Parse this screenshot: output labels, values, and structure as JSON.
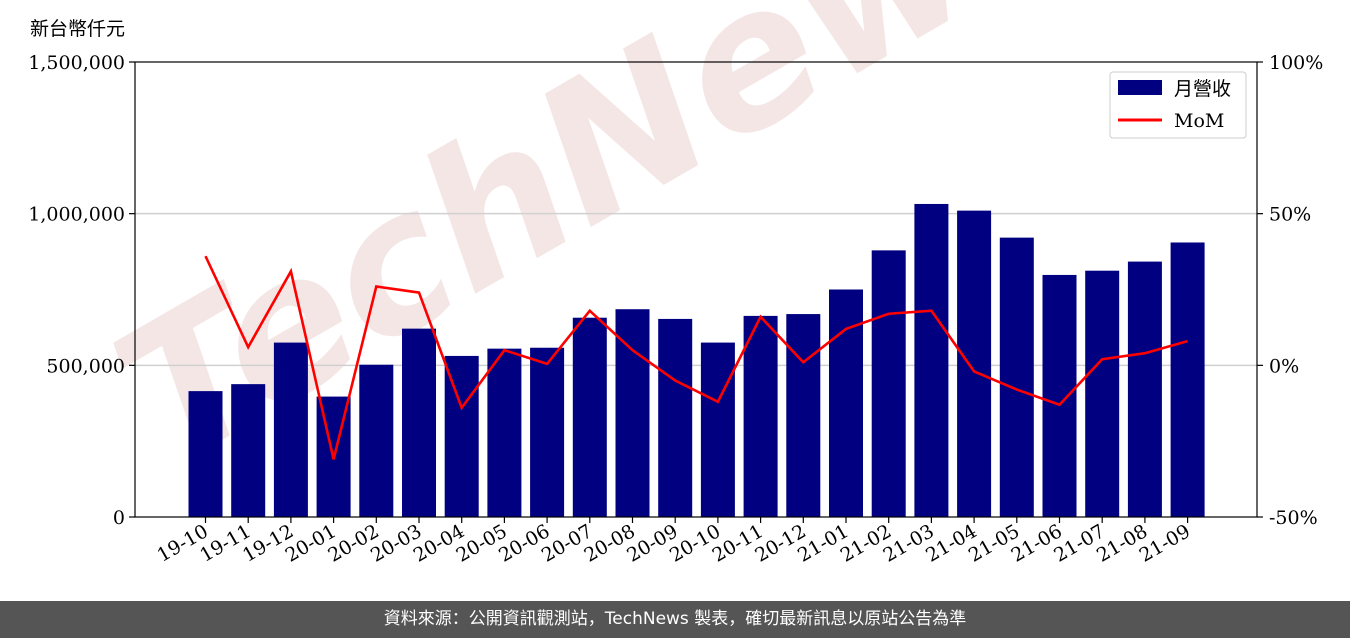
{
  "unit_label": "新台幣仟元",
  "footer_text": "資料來源：公開資訊觀測站，TechNews 製表，確切最新訊息以原站公告為準",
  "watermark": "TechNews",
  "colors": {
    "bar": "#000080",
    "line": "#ff0000",
    "grid": "#d0d0d0",
    "footer_bg": "#555555"
  },
  "chart_data": {
    "type": "bar",
    "categories": [
      "19-10",
      "19-11",
      "19-12",
      "20-01",
      "20-02",
      "20-03",
      "20-04",
      "20-05",
      "20-06",
      "20-07",
      "20-08",
      "20-09",
      "20-10",
      "20-11",
      "20-12",
      "21-01",
      "21-02",
      "21-03",
      "21-04",
      "21-05",
      "21-06",
      "21-07",
      "21-08",
      "21-09"
    ],
    "series": [
      {
        "name": "月營收",
        "type": "bar",
        "axis": "left",
        "values": [
          415000,
          438000,
          575000,
          397000,
          502000,
          621000,
          531000,
          555000,
          558000,
          657000,
          685000,
          653000,
          575000,
          663000,
          669000,
          750000,
          879000,
          1032000,
          1010000,
          921000,
          798000,
          812000,
          842000,
          905000
        ]
      },
      {
        "name": "MoM",
        "type": "line",
        "axis": "right",
        "values": [
          36,
          6,
          31,
          -31,
          26,
          24,
          -14,
          5,
          0.5,
          18,
          5,
          -5,
          -12,
          16,
          1,
          12,
          17,
          18,
          -2,
          -8,
          -13,
          2,
          4,
          8
        ]
      }
    ],
    "y_left": {
      "ylim": [
        0,
        1500000
      ],
      "ticks": [
        "0",
        "500,000",
        "1,000,000",
        "1,500,000"
      ],
      "tick_values": [
        0,
        500000,
        1000000,
        1500000
      ]
    },
    "y_right": {
      "ylim": [
        -50,
        100
      ],
      "ticks": [
        "-50%",
        "0%",
        "50%",
        "100%"
      ],
      "tick_values": [
        -50,
        0,
        50,
        100
      ]
    },
    "grid": "horizontal",
    "legend_position": "top-right"
  }
}
